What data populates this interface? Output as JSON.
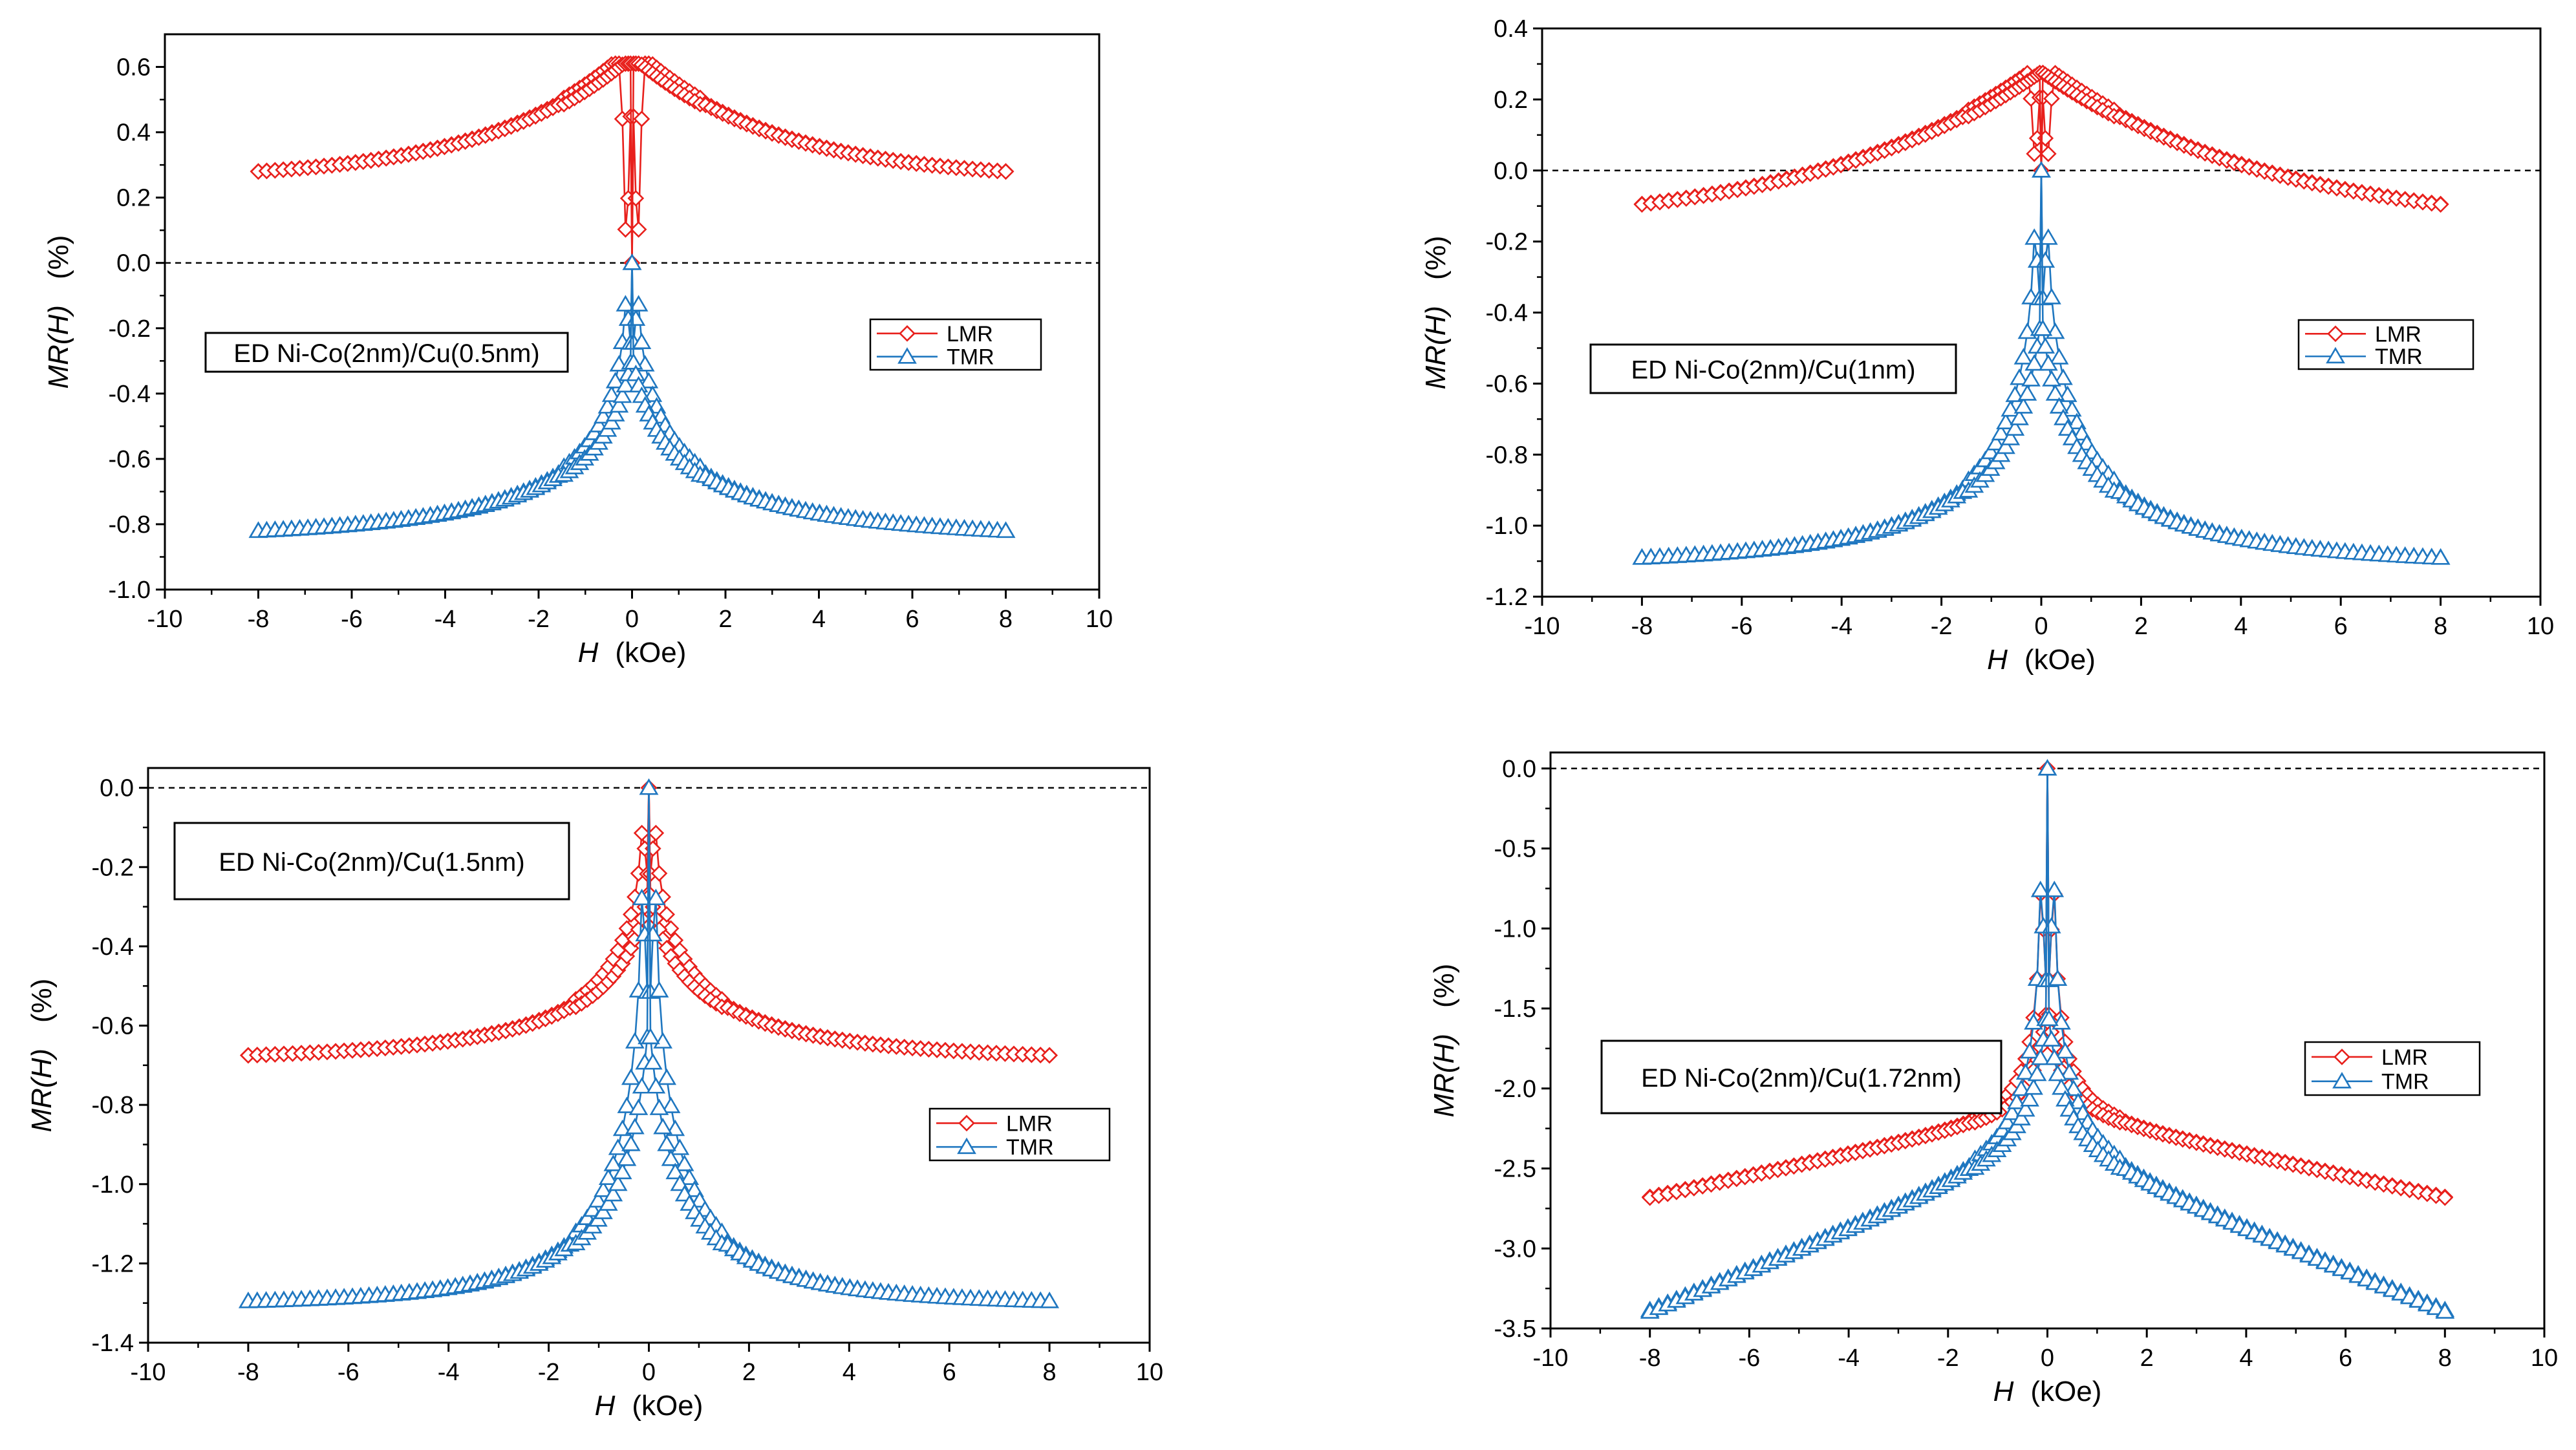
{
  "figure": {
    "series_colors": {
      "LMR": "#e8201c",
      "TMR": "#1f77c0"
    },
    "background": "#ffffff"
  },
  "chart_data": [
    {
      "type": "line",
      "label": "ED Ni-Co(2nm)/Cu(0.5nm)",
      "xlabel_italic": "H",
      "xlabel_unit": "(kOe)",
      "ylabel_italic": "MR(H)",
      "ylabel_unit": "(%)",
      "xlim": [
        -10,
        10
      ],
      "ylim": [
        -1.0,
        0.7
      ],
      "x_ticks": [
        "-10",
        "-8",
        "-6",
        "-4",
        "-2",
        "0",
        "2",
        "4",
        "6",
        "8",
        "10"
      ],
      "y_ticks": [
        "-1.0",
        "-0.8",
        "-0.6",
        "-0.4",
        "-0.2",
        "0.0",
        "0.2",
        "0.4",
        "0.6"
      ],
      "zero_line": true,
      "legend": [
        "LMR",
        "TMR"
      ],
      "model": {
        "LMR": {
          "type": "peak",
          "end": 0.28,
          "peak": 0.61,
          "peak_at": 0.3,
          "w": 3.0,
          "at_zero": 0.0
        },
        "TMR": {
          "type": "cusp",
          "end": -0.82,
          "center": 0.0,
          "w": 2.0
        }
      }
    },
    {
      "type": "line",
      "label": "ED Ni-Co(2nm)/Cu(1nm)",
      "xlabel_italic": "H",
      "xlabel_unit": "(kOe)",
      "ylabel_italic": "MR(H)",
      "ylabel_unit": "(%)",
      "xlim": [
        -10,
        10
      ],
      "ylim": [
        -1.2,
        0.4
      ],
      "x_ticks": [
        "-10",
        "-8",
        "-6",
        "-4",
        "-2",
        "0",
        "2",
        "4",
        "6",
        "8",
        "10"
      ],
      "y_ticks": [
        "-1.2",
        "-1.0",
        "-0.8",
        "-0.6",
        "-0.4",
        "-0.2",
        "0.0",
        "0.2",
        "0.4"
      ],
      "zero_line": true,
      "legend": [
        "LMR",
        "TMR"
      ],
      "model": {
        "LMR": {
          "type": "peak",
          "end": -0.095,
          "peak": 0.28,
          "peak_at": 0.1,
          "w": 4.5,
          "at_zero": 0.0
        },
        "TMR": {
          "type": "cusp",
          "end": -1.09,
          "center": 0.0,
          "w": 1.5
        }
      }
    },
    {
      "type": "line",
      "label": "ED Ni-Co(2nm)/Cu(1.5nm)",
      "xlabel_italic": "H",
      "xlabel_unit": "(kOe)",
      "ylabel_italic": "MR(H)",
      "ylabel_unit": "(%)",
      "xlim": [
        -10,
        10
      ],
      "ylim": [
        -1.4,
        0.05
      ],
      "x_ticks": [
        "-10",
        "-8",
        "-6",
        "-4",
        "-2",
        "0",
        "2",
        "4",
        "6",
        "8",
        "10"
      ],
      "y_ticks": [
        "-1.4",
        "-1.2",
        "-1.0",
        "-0.8",
        "-0.6",
        "-0.4",
        "-0.2",
        "0.0"
      ],
      "zero_line": true,
      "legend": [
        "LMR",
        "TMR"
      ],
      "model": {
        "LMR": {
          "type": "cusp",
          "end": -0.675,
          "center": 0.0,
          "w": 1.6
        },
        "TMR": {
          "type": "cusp",
          "end": -1.295,
          "center": 0.0,
          "w": 0.9
        }
      }
    },
    {
      "type": "line",
      "label": "ED Ni-Co(2nm)/Cu(1.72nm)",
      "xlabel_italic": "H",
      "xlabel_unit": "(kOe)",
      "ylabel_italic": "MR(H)",
      "ylabel_unit": "(%)",
      "xlim": [
        -10,
        10
      ],
      "ylim": [
        -3.5,
        0.1
      ],
      "x_ticks": [
        "-10",
        "-8",
        "-6",
        "-4",
        "-2",
        "0",
        "2",
        "4",
        "6",
        "8",
        "10"
      ],
      "y_ticks": [
        "-3.5",
        "-3.0",
        "-2.5",
        "-2.0",
        "-1.5",
        "-1.0",
        "-0.5",
        "0.0"
      ],
      "zero_line": true,
      "legend": [
        "LMR",
        "TMR"
      ],
      "model": {
        "LMR": {
          "type": "cusp",
          "end": -2.68,
          "center": 0.0,
          "w": 0.25,
          "tail": 0.2
        },
        "TMR": {
          "type": "cusp",
          "end": -3.39,
          "center": 0.0,
          "w": 0.35,
          "tail": 0.3
        }
      }
    }
  ]
}
